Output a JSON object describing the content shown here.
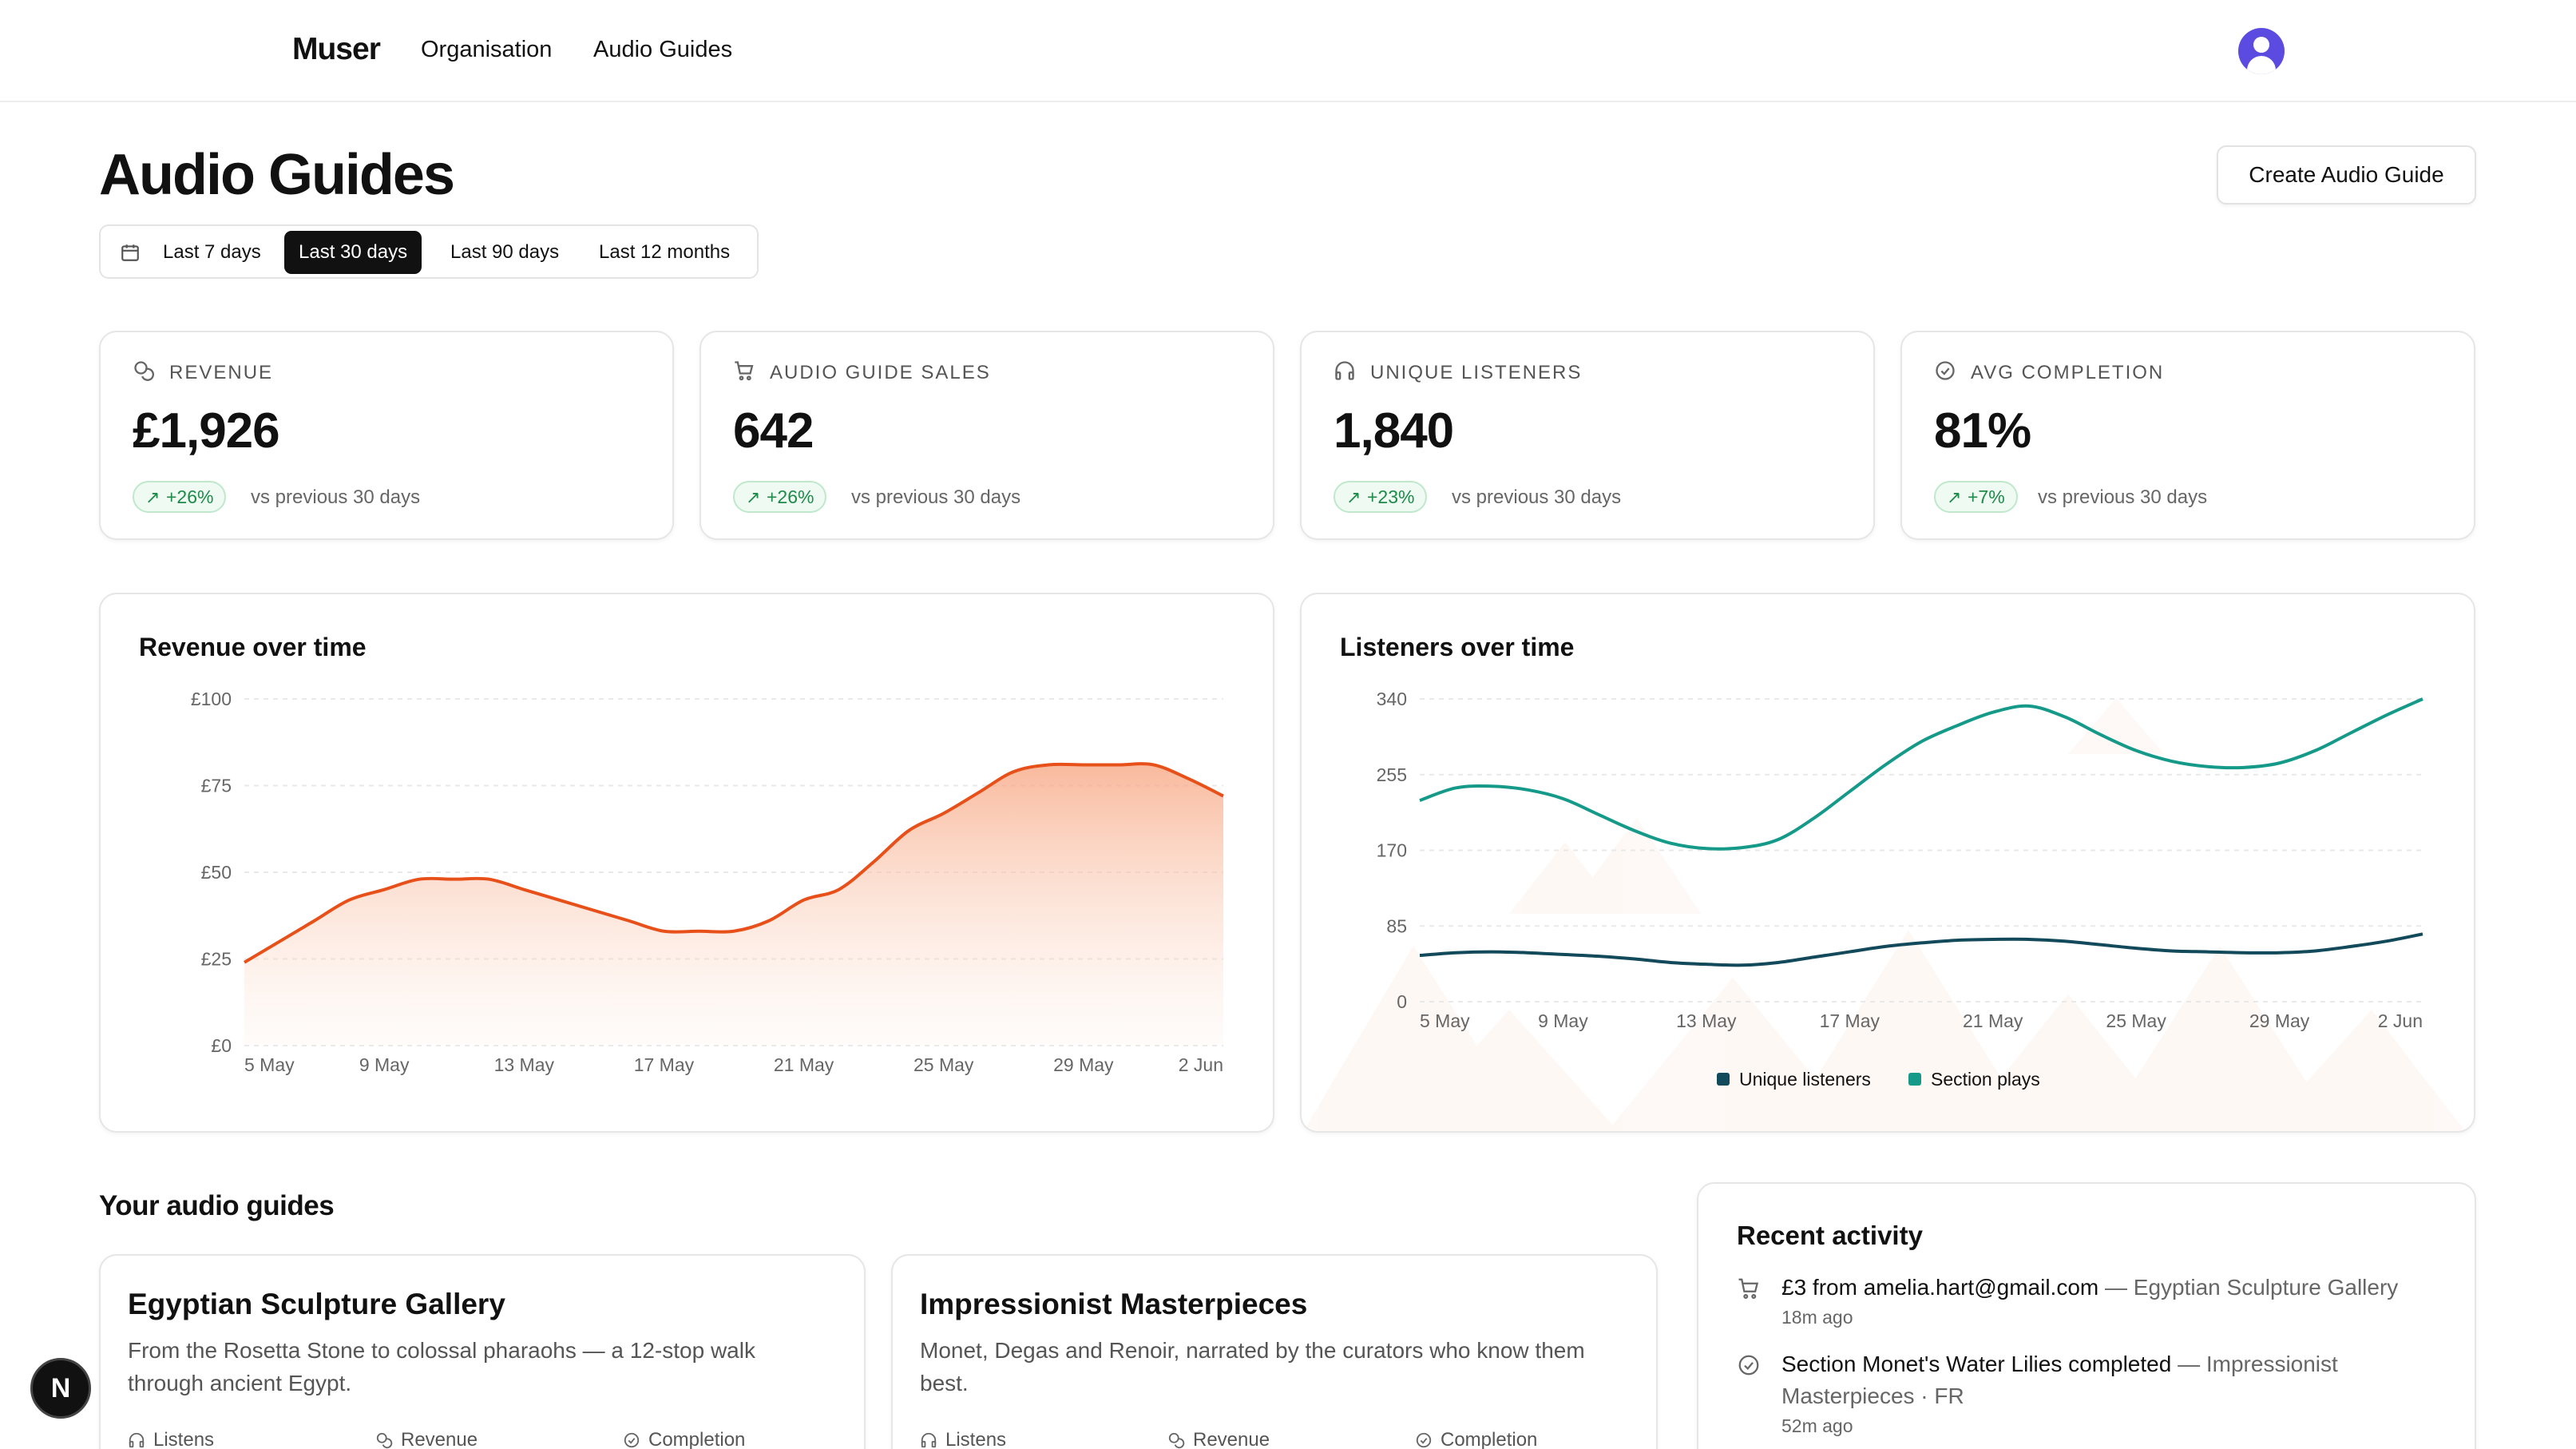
{
  "nav": {
    "brand": "Muser",
    "links": [
      "Organisation",
      "Audio Guides"
    ]
  },
  "header": {
    "title": "Audio Guides",
    "create_button": "Create Audio Guide"
  },
  "date_range": {
    "options": [
      "Last 7 days",
      "Last 30 days",
      "Last 90 days",
      "Last 12 months"
    ],
    "selected": "Last 30 days"
  },
  "kpis": [
    {
      "label": "REVENUE",
      "value": "£1,926",
      "change": "+26%",
      "comparison": "vs previous 30 days",
      "icon": "coins-icon"
    },
    {
      "label": "AUDIO GUIDE SALES",
      "value": "642",
      "change": "+26%",
      "comparison": "vs previous 30 days",
      "icon": "cart-icon"
    },
    {
      "label": "UNIQUE LISTENERS",
      "value": "1,840",
      "change": "+23%",
      "comparison": "vs previous 30 days",
      "icon": "headphones-icon"
    },
    {
      "label": "AVG COMPLETION",
      "value": "81%",
      "change": "+7%",
      "comparison": "vs previous 30 days",
      "icon": "check-circle-icon"
    }
  ],
  "colors": {
    "revenue_line": "#e8501a",
    "unique_listeners": "#12495b",
    "section_plays": "#159a8a",
    "positive_badge": "#1e8a4a"
  },
  "chart_data": [
    {
      "type": "area",
      "title": "Revenue over time",
      "x": [
        "5 May",
        "6 May",
        "7 May",
        "8 May",
        "9 May",
        "10 May",
        "11 May",
        "12 May",
        "13 May",
        "14 May",
        "15 May",
        "16 May",
        "17 May",
        "18 May",
        "19 May",
        "20 May",
        "21 May",
        "22 May",
        "23 May",
        "24 May",
        "25 May",
        "26 May",
        "27 May",
        "28 May",
        "29 May",
        "30 May",
        "31 May",
        "1 Jun",
        "2 Jun"
      ],
      "x_ticks": [
        "5 May",
        "9 May",
        "13 May",
        "17 May",
        "21 May",
        "25 May",
        "29 May",
        "2 Jun"
      ],
      "y_ticks": [
        "£0",
        "£25",
        "£50",
        "£75",
        "£100"
      ],
      "ylim": [
        0,
        100
      ],
      "series": [
        {
          "values": [
            24,
            30,
            36,
            42,
            45,
            48,
            48,
            48,
            45,
            42,
            39,
            36,
            33,
            33,
            33,
            36,
            42,
            45,
            53,
            62,
            67,
            73,
            79,
            81,
            81,
            81,
            81,
            77,
            72
          ]
        }
      ],
      "grid": true
    },
    {
      "type": "line",
      "title": "Listeners over time",
      "x": [
        "5 May",
        "6 May",
        "7 May",
        "8 May",
        "9 May",
        "10 May",
        "11 May",
        "12 May",
        "13 May",
        "14 May",
        "15 May",
        "16 May",
        "17 May",
        "18 May",
        "19 May",
        "20 May",
        "21 May",
        "22 May",
        "23 May",
        "24 May",
        "25 May",
        "26 May",
        "27 May",
        "28 May",
        "29 May",
        "30 May",
        "31 May",
        "1 Jun",
        "2 Jun"
      ],
      "x_ticks": [
        "5 May",
        "9 May",
        "13 May",
        "17 May",
        "21 May",
        "25 May",
        "29 May",
        "2 Jun"
      ],
      "y_ticks": [
        "0",
        "85",
        "170",
        "255",
        "340"
      ],
      "ylim": [
        0,
        340
      ],
      "series": [
        {
          "name": "Unique listeners",
          "values": [
            52,
            55,
            56,
            55,
            53,
            51,
            48,
            44,
            42,
            41,
            44,
            50,
            56,
            62,
            66,
            69,
            70,
            70,
            68,
            64,
            60,
            57,
            56,
            55,
            55,
            57,
            62,
            68,
            76
          ]
        },
        {
          "name": "Section plays",
          "values": [
            226,
            240,
            242,
            238,
            228,
            210,
            192,
            178,
            172,
            173,
            182,
            206,
            236,
            266,
            292,
            310,
            325,
            332,
            320,
            300,
            282,
            270,
            264,
            263,
            268,
            282,
            302,
            322,
            340
          ]
        }
      ],
      "legend": "bottom",
      "grid": true
    }
  ],
  "guides_section": {
    "title": "Your audio guides",
    "guides": [
      {
        "title": "Egyptian Sculpture Gallery",
        "description": "From the Rosetta Stone to colossal pharaohs — a 12-stop walk through ancient Egypt.",
        "stats": [
          "Listens",
          "Revenue",
          "Completion"
        ]
      },
      {
        "title": "Impressionist Masterpieces",
        "description": "Monet, Degas and Renoir, narrated by the curators who know them best.",
        "stats": [
          "Listens",
          "Revenue",
          "Completion"
        ]
      }
    ]
  },
  "activity": {
    "title": "Recent activity",
    "items": [
      {
        "icon": "cart-icon",
        "main": "£3 from amelia.hart@gmail.com",
        "secondary": " — Egyptian Sculpture Gallery",
        "time": "18m ago"
      },
      {
        "icon": "check-circle-icon",
        "main": "Section Monet's Water Lilies completed",
        "secondary": " — Impressionist Masterpieces · FR",
        "time": "52m ago"
      }
    ]
  },
  "dev_badge": "N"
}
